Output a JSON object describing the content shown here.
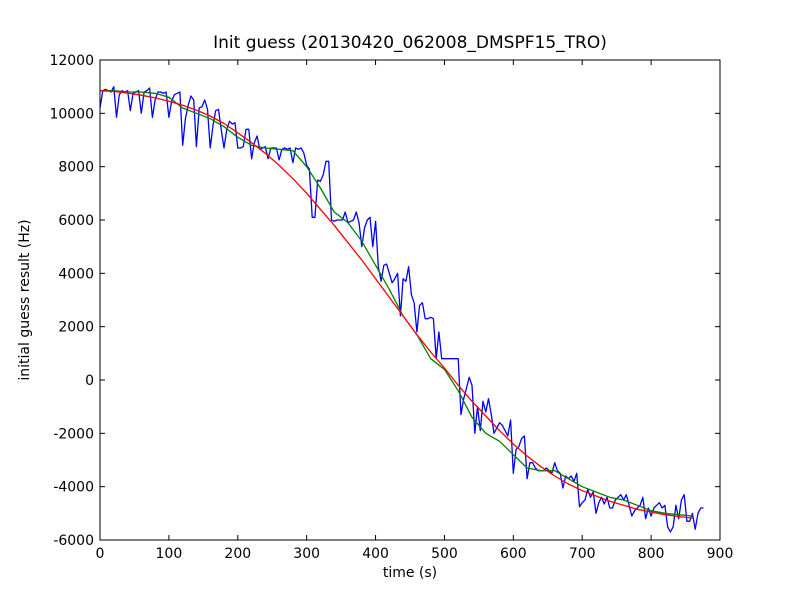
{
  "chart_data": {
    "type": "line",
    "title": "Init guess (20130420_062008_DMSPF15_TRO)",
    "xlabel": "time (s)",
    "ylabel": "initial guess result (Hz)",
    "xlim": [
      0,
      900
    ],
    "ylim": [
      -6000,
      12000
    ],
    "xticks": [
      0,
      100,
      200,
      300,
      400,
      500,
      600,
      700,
      800,
      900
    ],
    "yticks": [
      -6000,
      -4000,
      -2000,
      0,
      2000,
      4000,
      6000,
      8000,
      10000,
      12000
    ],
    "grid": false,
    "legend": "none",
    "series": [
      {
        "color": "#0000ff",
        "x": [
          0,
          4,
          8,
          12,
          16,
          20,
          24,
          28,
          32,
          36,
          40,
          44,
          48,
          52,
          56,
          60,
          64,
          68,
          72,
          76,
          80,
          84,
          88,
          92,
          96,
          100,
          104,
          108,
          112,
          116,
          120,
          124,
          128,
          132,
          136,
          140,
          144,
          148,
          152,
          156,
          160,
          164,
          168,
          172,
          176,
          180,
          184,
          188,
          192,
          196,
          200,
          204,
          208,
          212,
          216,
          220,
          224,
          228,
          232,
          236,
          240,
          244,
          248,
          252,
          256,
          260,
          264,
          268,
          272,
          276,
          280,
          284,
          288,
          292,
          296,
          300,
          304,
          308,
          312,
          316,
          320,
          324,
          328,
          332,
          336,
          340,
          344,
          348,
          352,
          356,
          360,
          364,
          368,
          372,
          376,
          380,
          384,
          388,
          392,
          396,
          400,
          404,
          408,
          412,
          416,
          420,
          424,
          428,
          432,
          436,
          440,
          444,
          448,
          452,
          456,
          460,
          464,
          468,
          472,
          476,
          480,
          484,
          488,
          492,
          496,
          500,
          504,
          508,
          512,
          516,
          520,
          524,
          528,
          532,
          536,
          540,
          544,
          548,
          552,
          556,
          560,
          564,
          568,
          572,
          576,
          580,
          584,
          588,
          592,
          596,
          600,
          604,
          608,
          612,
          616,
          620,
          624,
          628,
          632,
          636,
          640,
          644,
          648,
          652,
          656,
          660,
          664,
          668,
          672,
          676,
          680,
          684,
          688,
          692,
          696,
          700,
          704,
          708,
          712,
          716,
          720,
          724,
          728,
          732,
          736,
          740,
          744,
          748,
          752,
          756,
          760,
          764,
          768,
          772,
          776,
          780,
          784,
          788,
          792,
          796,
          800,
          804,
          808,
          812,
          816,
          820,
          824,
          828,
          832,
          836,
          840,
          844,
          848,
          852,
          856,
          860,
          864,
          868,
          872,
          876
        ],
        "y": [
          10200,
          10850,
          10900,
          10850,
          10800,
          11000,
          9850,
          10700,
          10850,
          10800,
          10850,
          10100,
          10750,
          10800,
          10850,
          10000,
          10800,
          10850,
          10950,
          9850,
          10500,
          10800,
          10800,
          10750,
          10800,
          9850,
          10450,
          10700,
          10750,
          10800,
          8800,
          9800,
          10300,
          10650,
          10500,
          8750,
          10200,
          10250,
          10500,
          10150,
          8700,
          9550,
          10100,
          10150,
          9400,
          8700,
          9400,
          9700,
          9600,
          9650,
          8700,
          8700,
          8750,
          9400,
          9400,
          8300,
          8900,
          9150,
          8650,
          8700,
          8750,
          8300,
          8700,
          8700,
          8700,
          8250,
          8650,
          8700,
          8650,
          8700,
          8150,
          8700,
          8650,
          8700,
          8500,
          8050,
          7900,
          6100,
          6100,
          7500,
          7450,
          7700,
          8200,
          8200,
          6000,
          5950,
          6000,
          6000,
          6000,
          6300,
          5900,
          5950,
          6000,
          6300,
          5900,
          5000,
          5700,
          6000,
          6100,
          5000,
          5950,
          4250,
          3700,
          4300,
          4350,
          4000,
          3650,
          3800,
          4000,
          2400,
          3800,
          3700,
          4250,
          3200,
          2900,
          1800,
          2800,
          2900,
          2300,
          2300,
          2350,
          2300,
          800,
          1800,
          800,
          800,
          800,
          800,
          800,
          800,
          800,
          -1300,
          -700,
          -300,
          100,
          -200,
          -2000,
          -1000,
          -1900,
          -800,
          -1200,
          -700,
          -1300,
          -2000,
          -1800,
          -1600,
          -1700,
          -1900,
          -2100,
          -1500,
          -3500,
          -2600,
          -2500,
          -2200,
          -2100,
          -3700,
          -3100,
          -3100,
          -3300,
          -3400,
          -3400,
          -3400,
          -3300,
          -3400,
          -3500,
          -3100,
          -3400,
          -3500,
          -4050,
          -3600,
          -3700,
          -3600,
          -3800,
          -3500,
          -4750,
          -4600,
          -4500,
          -4100,
          -4400,
          -4200,
          -5000,
          -4600,
          -4400,
          -4650,
          -4400,
          -4800,
          -4800,
          -4500,
          -4400,
          -4300,
          -4500,
          -4300,
          -4700,
          -5100,
          -4900,
          -4800,
          -4700,
          -4400,
          -5200,
          -4800,
          -5100,
          -4800,
          -4700,
          -4600,
          -4800,
          -4700,
          -5500,
          -5700,
          -5500,
          -4700,
          -5200,
          -4500,
          -4300,
          -5300,
          -5300,
          -5000,
          -5600,
          -5000,
          -4800,
          -4800
        ],
        "note_x_end": "blue series continues to x≈880"
      },
      {
        "color": "#008000",
        "x": [
          0,
          20,
          40,
          60,
          80,
          100,
          120,
          140,
          160,
          180,
          200,
          220,
          240,
          260,
          280,
          300,
          320,
          340,
          360,
          380,
          400,
          420,
          440,
          460,
          480,
          500,
          520,
          540,
          560,
          580,
          600,
          620,
          640,
          660,
          680,
          700,
          720,
          740,
          760,
          780,
          800,
          820,
          840,
          860
        ],
        "y": [
          10850,
          10850,
          10800,
          10800,
          10750,
          10600,
          10200,
          10000,
          9800,
          9500,
          9100,
          8800,
          8700,
          8650,
          8600,
          8000,
          7200,
          6300,
          5900,
          5200,
          4300,
          3400,
          2400,
          1700,
          800,
          400,
          -400,
          -1400,
          -2000,
          -2300,
          -2800,
          -3300,
          -3400,
          -3400,
          -3700,
          -4000,
          -4200,
          -4400,
          -4500,
          -4700,
          -4900,
          -5000,
          -5050,
          -5100
        ]
      },
      {
        "color": "#ff0000",
        "x": [
          0,
          20,
          40,
          60,
          80,
          100,
          120,
          140,
          160,
          180,
          200,
          220,
          240,
          260,
          280,
          300,
          320,
          340,
          360,
          380,
          400,
          420,
          440,
          460,
          480,
          500,
          520,
          540,
          560,
          580,
          600,
          620,
          640,
          660,
          680,
          700,
          720,
          740,
          760,
          780,
          800,
          820,
          840,
          860
        ],
        "y": [
          10850,
          10820,
          10760,
          10680,
          10580,
          10450,
          10300,
          10120,
          9900,
          9620,
          9270,
          8900,
          8500,
          8050,
          7550,
          7000,
          6400,
          5800,
          5150,
          4500,
          3800,
          3100,
          2400,
          1700,
          1050,
          450,
          -200,
          -800,
          -1350,
          -1900,
          -2400,
          -2850,
          -3250,
          -3600,
          -3900,
          -4150,
          -4350,
          -4550,
          -4700,
          -4850,
          -4950,
          -5050,
          -5120,
          -5180
        ]
      }
    ]
  }
}
